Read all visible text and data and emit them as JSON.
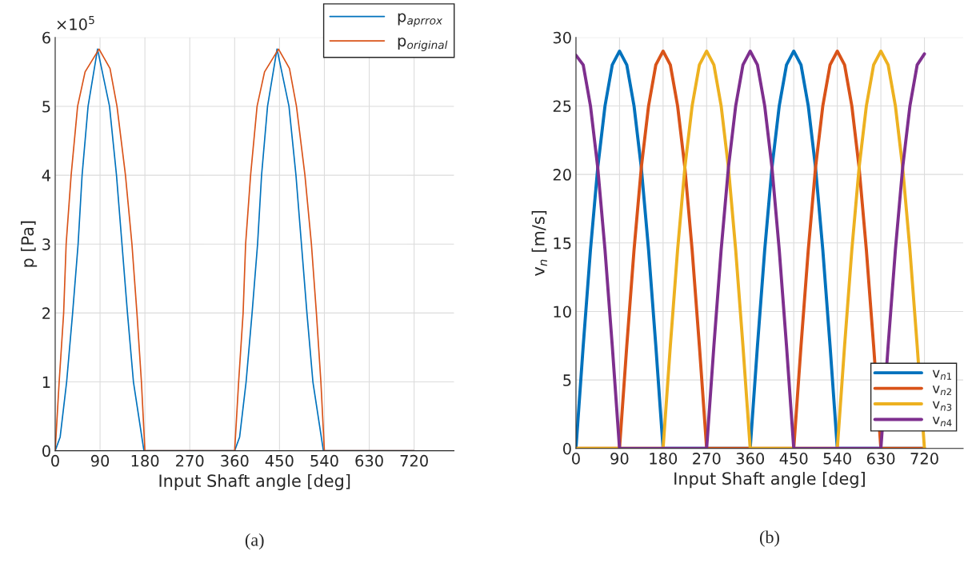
{
  "chart_data": [
    {
      "type": "line",
      "xlabel": "Input Shaft angle [deg]",
      "ylabel": "p [Pa]",
      "annotations": [
        "×10$^{5}$",
        "(a)"
      ],
      "xlim": [
        0,
        800
      ],
      "xticks": [
        0,
        90,
        180,
        270,
        360,
        450,
        540,
        630,
        720
      ],
      "ylim": [
        0,
        6
      ],
      "yticks": [
        0,
        1,
        2,
        3,
        4,
        5,
        6
      ],
      "grid": true,
      "legend": "top right",
      "line_style": "solid",
      "marker": "none",
      "series": [
        {
          "name": "p$_{aprrox}$",
          "color": "#0072bd",
          "x": [
            0,
            10,
            23,
            35,
            46,
            54,
            66,
            85,
            109,
            123,
            134,
            145,
            157,
            178,
            360,
            370,
            383,
            395,
            406,
            414,
            426,
            445,
            469,
            483,
            494,
            505,
            517,
            538,
            720
          ],
          "values": [
            0,
            0.2,
            1,
            2,
            3,
            4,
            5,
            5.83,
            5,
            4,
            3,
            2,
            1,
            0,
            0,
            0.2,
            1,
            2,
            3,
            4,
            5,
            5.83,
            5,
            4,
            3,
            2,
            1,
            0,
            0
          ]
        },
        {
          "name": "p$_{original}$",
          "color": "#d95319",
          "x": [
            0,
            8,
            17,
            22,
            32,
            45,
            60,
            88,
            110,
            124,
            141,
            154,
            164,
            173,
            180,
            360,
            368,
            377,
            382,
            392,
            405,
            420,
            448,
            470,
            484,
            501,
            514,
            524,
            533,
            540,
            720
          ],
          "values": [
            0,
            1,
            2,
            3,
            4,
            5,
            5.5,
            5.83,
            5.55,
            5,
            4,
            3,
            2,
            1,
            0,
            0,
            1,
            2,
            3,
            4,
            5,
            5.5,
            5.83,
            5.55,
            5,
            4,
            3,
            2,
            1,
            0,
            0
          ]
        }
      ]
    },
    {
      "type": "line",
      "xlabel": "Input Shaft angle [deg]",
      "ylabel": "v$_{n}$ [m/s]",
      "annotations": [
        "(b)"
      ],
      "xlim": [
        0,
        800
      ],
      "xticks": [
        0,
        90,
        180,
        270,
        360,
        450,
        540,
        630,
        720
      ],
      "ylim": [
        0,
        30
      ],
      "yticks": [
        0,
        5,
        10,
        15,
        20,
        25,
        30
      ],
      "grid": true,
      "legend": "right",
      "line_style": "solid",
      "marker": "none",
      "series": [
        {
          "name": "v$_{n1}$",
          "color": "#0072bd",
          "x": [
            0,
            15,
            30,
            45,
            60,
            75,
            90,
            105,
            120,
            135,
            150,
            165,
            180,
            360,
            375,
            390,
            405,
            420,
            435,
            450,
            465,
            480,
            495,
            510,
            525,
            540,
            720
          ],
          "values": [
            0,
            7.5,
            14.5,
            20.5,
            25,
            28,
            29,
            28,
            25,
            20.5,
            14.5,
            7.5,
            0,
            0,
            7.5,
            14.5,
            20.5,
            25,
            28,
            29,
            28,
            25,
            20.5,
            14.5,
            7.5,
            0,
            0
          ]
        },
        {
          "name": "v$_{n2}$",
          "color": "#d95319",
          "x": [
            0,
            90,
            105,
            120,
            135,
            150,
            165,
            180,
            195,
            210,
            225,
            240,
            255,
            270,
            450,
            465,
            480,
            495,
            510,
            525,
            540,
            555,
            570,
            585,
            600,
            615,
            630,
            720
          ],
          "values": [
            0,
            0,
            7.5,
            14.5,
            20.5,
            25,
            28,
            29,
            28,
            25,
            20.5,
            14.5,
            7.5,
            0,
            0,
            7.5,
            14.5,
            20.5,
            25,
            28,
            29,
            28,
            25,
            20.5,
            14.5,
            7.5,
            0,
            0
          ]
        },
        {
          "name": "v$_{n3}$",
          "color": "#edb120",
          "x": [
            0,
            180,
            195,
            210,
            225,
            240,
            255,
            270,
            285,
            300,
            315,
            330,
            345,
            360,
            540,
            555,
            570,
            585,
            600,
            615,
            630,
            645,
            660,
            675,
            690,
            705,
            720
          ],
          "values": [
            0,
            0,
            7.5,
            14.5,
            20.5,
            25,
            28,
            29,
            28,
            25,
            20.5,
            14.5,
            7.5,
            0,
            0,
            7.5,
            14.5,
            20.5,
            25,
            28,
            29,
            28,
            25,
            20.5,
            14.5,
            7.5,
            0
          ]
        },
        {
          "name": "v$_{n4}$",
          "color": "#7e2f8e",
          "x": [
            0,
            15,
            30,
            45,
            60,
            75,
            90,
            270,
            285,
            300,
            315,
            330,
            345,
            360,
            375,
            390,
            405,
            420,
            435,
            450,
            630,
            645,
            660,
            675,
            690,
            705,
            720
          ],
          "values": [
            28.7,
            28,
            25,
            20.5,
            14.5,
            7.5,
            0,
            0,
            7.5,
            14.5,
            20.5,
            25,
            28,
            29,
            28,
            25,
            20.5,
            14.5,
            7.5,
            0,
            0,
            7.5,
            14.5,
            20.5,
            25,
            28,
            28.8
          ]
        }
      ]
    }
  ]
}
